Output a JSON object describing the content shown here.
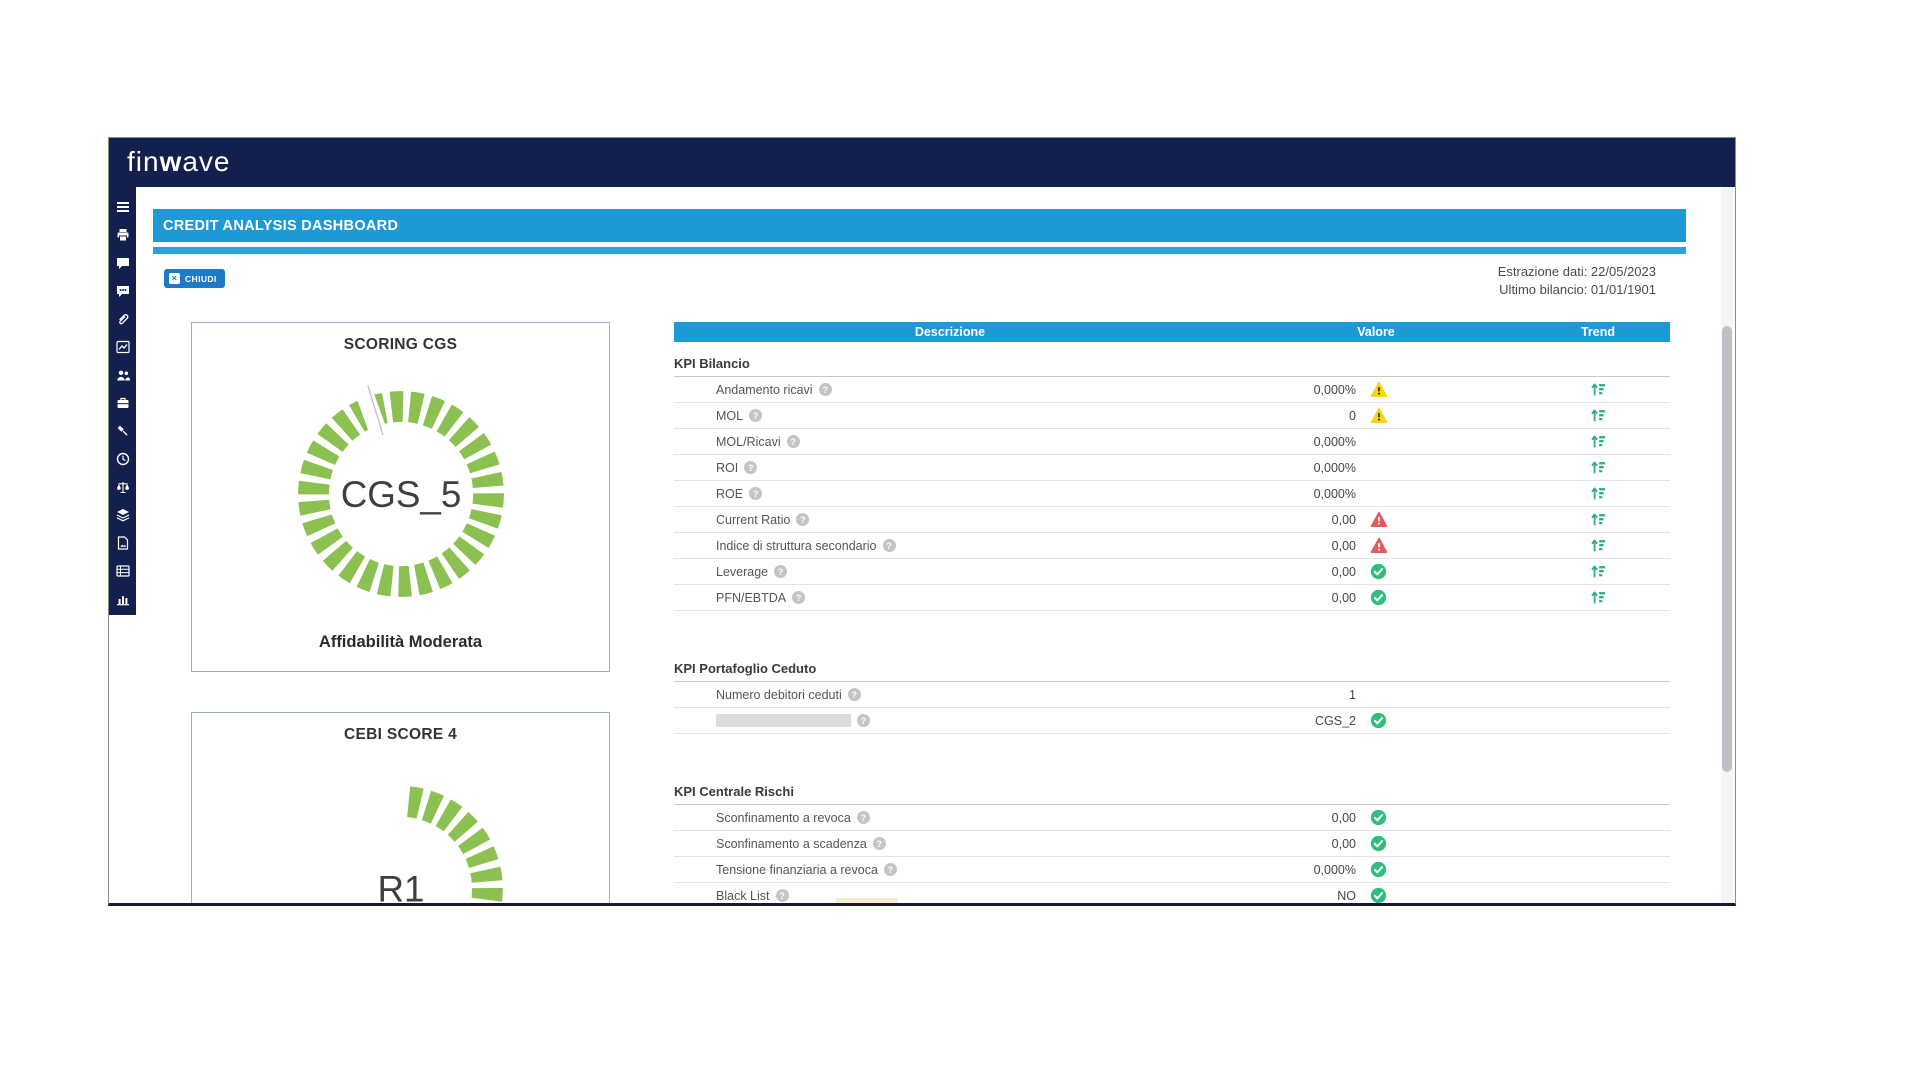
{
  "brand": {
    "logo_fin": "fin",
    "logo_w": "w",
    "logo_ave": "ave"
  },
  "header": {
    "title": "CREDIT ANALYSIS DASHBOARD"
  },
  "toolbar": {
    "close_label": "CHIUDI",
    "extraction_date": "Estrazione dati: 22/05/2023",
    "last_balance": "Ultimo bilancio: 01/01/1901"
  },
  "sidebar": {
    "items": [
      "menu-icon",
      "printer-icon",
      "comment-icon",
      "chat-dots-icon",
      "attachment-icon",
      "chart-line-icon",
      "users-icon",
      "briefcase-icon",
      "gavel-icon",
      "clock-icon",
      "scale-icon",
      "layers-icon",
      "file-image-icon",
      "list-icon",
      "chart-bar-icon"
    ]
  },
  "cards": {
    "scoring": {
      "title": "SCORING CGS",
      "value": "CGS_5",
      "label": "Affidabilità Moderata"
    },
    "cebi": {
      "title": "CEBI SCORE 4",
      "value": "R1"
    }
  },
  "table": {
    "columns": [
      "Descrizione",
      "Valore",
      "Trend"
    ],
    "sections": [
      {
        "title": "KPI Bilancio",
        "trend": true,
        "rows": [
          {
            "label": "Andamento ricavi",
            "value": "0,000%",
            "status": "warning"
          },
          {
            "label": "MOL",
            "value": "0",
            "status": "warning"
          },
          {
            "label": "MOL/Ricavi",
            "value": "0,000%",
            "status": "none"
          },
          {
            "label": "ROI",
            "value": "0,000%",
            "status": "none"
          },
          {
            "label": "ROE",
            "value": "0,000%",
            "status": "none"
          },
          {
            "label": "Current Ratio",
            "value": "0,00",
            "status": "danger"
          },
          {
            "label": "Indice di struttura secondario",
            "value": "0,00",
            "status": "danger"
          },
          {
            "label": "Leverage",
            "value": "0,00",
            "status": "ok"
          },
          {
            "label": "PFN/EBTDA",
            "value": "0,00",
            "status": "ok"
          }
        ]
      },
      {
        "title": "KPI Portafoglio Ceduto",
        "trend": false,
        "rows": [
          {
            "label": "Numero debitori ceduti",
            "value": "1",
            "status": "none"
          },
          {
            "label": "",
            "redacted": true,
            "value": "CGS_2",
            "status": "ok"
          }
        ]
      },
      {
        "title": "KPI Centrale Rischi",
        "trend": false,
        "rows": [
          {
            "label": "Sconfinamento a revoca",
            "value": "0,00",
            "status": "ok"
          },
          {
            "label": "Sconfinamento a scadenza",
            "value": "0,00",
            "status": "ok"
          },
          {
            "label": "Tensione finanziaria a revoca",
            "value": "0,000%",
            "status": "ok"
          },
          {
            "label": "Black List",
            "value": "NO",
            "status": "ok"
          }
        ]
      }
    ]
  },
  "colors": {
    "navy": "#13204e",
    "blue": "#1d9ad6",
    "button_blue": "#1f7ac6",
    "gauge_green": "#8cc152",
    "ok_green": "#2fbe7d",
    "warning_yellow": "#f5d41a",
    "danger_red": "#e05b5b",
    "trend_teal": "#2fae7e"
  }
}
